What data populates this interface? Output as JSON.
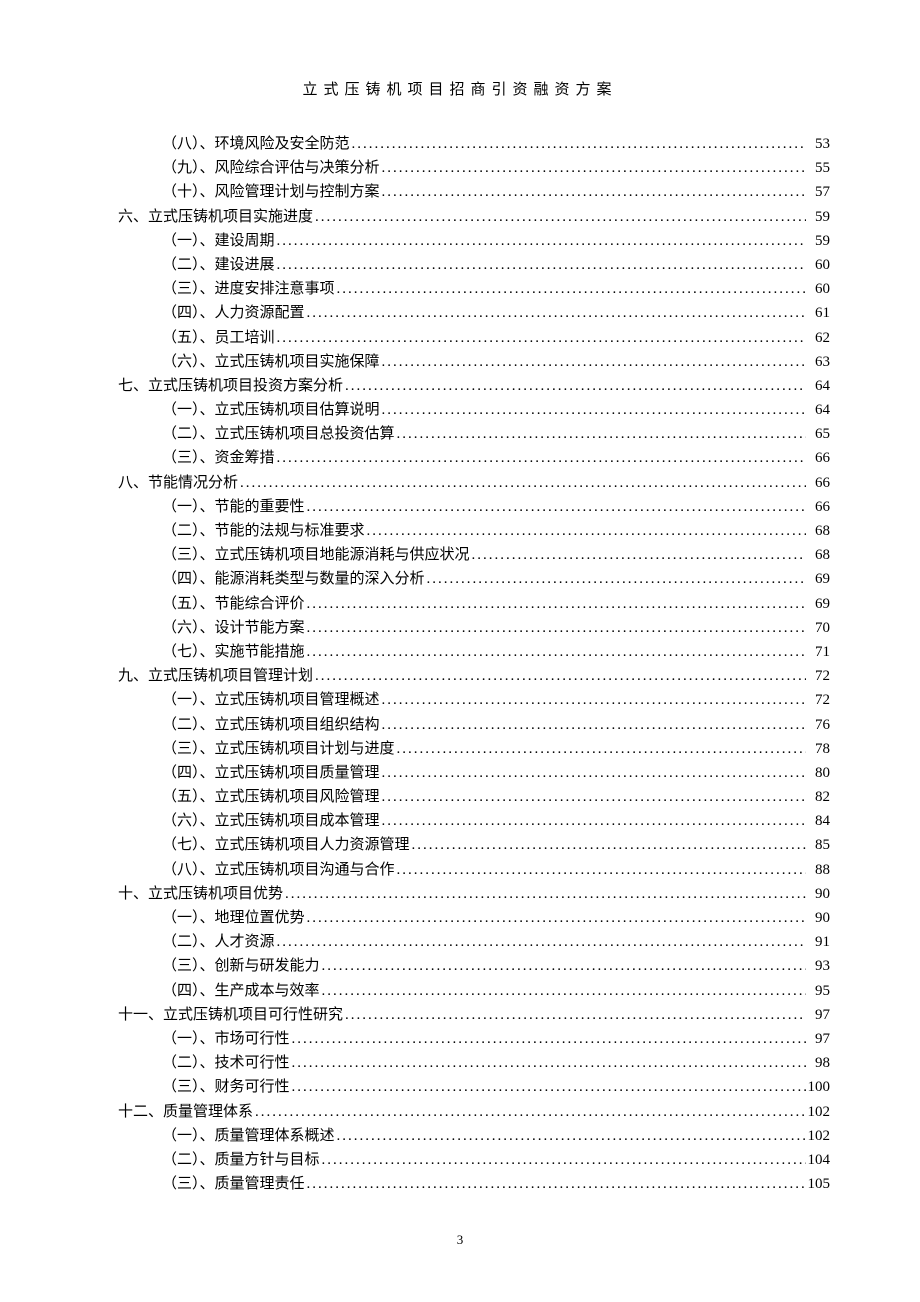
{
  "header_title": "立式压铸机项目招商引资融资方案",
  "page_number": "3",
  "text_color": "#000000",
  "background_color": "#ffffff",
  "font_family": "SimSun",
  "base_fontsize": 15,
  "header_fontsize": 15,
  "header_letter_spacing": 6,
  "toc_entries": [
    {
      "level": 2,
      "label": "（八）、环境风险及安全防范",
      "page": "53"
    },
    {
      "level": 2,
      "label": "（九）、风险综合评估与决策分析",
      "page": "55"
    },
    {
      "level": 2,
      "label": "（十）、风险管理计划与控制方案",
      "page": "57"
    },
    {
      "level": 1,
      "label": "六、立式压铸机项目实施进度",
      "page": "59"
    },
    {
      "level": 2,
      "label": "（一）、建设周期",
      "page": "59"
    },
    {
      "level": 2,
      "label": "（二）、建设进展",
      "page": "60"
    },
    {
      "level": 2,
      "label": "（三）、进度安排注意事项",
      "page": "60"
    },
    {
      "level": 2,
      "label": "（四）、人力资源配置",
      "page": "61"
    },
    {
      "level": 2,
      "label": "（五）、员工培训",
      "page": "62"
    },
    {
      "level": 2,
      "label": "（六）、立式压铸机项目实施保障",
      "page": "63"
    },
    {
      "level": 1,
      "label": "七、立式压铸机项目投资方案分析",
      "page": "64"
    },
    {
      "level": 2,
      "label": "（一）、立式压铸机项目估算说明",
      "page": "64"
    },
    {
      "level": 2,
      "label": "（二）、立式压铸机项目总投资估算",
      "page": "65"
    },
    {
      "level": 2,
      "label": "（三）、资金筹措",
      "page": "66"
    },
    {
      "level": 1,
      "label": "八、节能情况分析",
      "page": "66"
    },
    {
      "level": 2,
      "label": "（一）、节能的重要性",
      "page": "66"
    },
    {
      "level": 2,
      "label": "（二）、节能的法规与标准要求",
      "page": "68"
    },
    {
      "level": 2,
      "label": "（三）、立式压铸机项目地能源消耗与供应状况",
      "page": "68"
    },
    {
      "level": 2,
      "label": "（四）、能源消耗类型与数量的深入分析",
      "page": "69"
    },
    {
      "level": 2,
      "label": "（五）、节能综合评价",
      "page": "69"
    },
    {
      "level": 2,
      "label": "（六）、设计节能方案",
      "page": "70"
    },
    {
      "level": 2,
      "label": "（七）、实施节能措施",
      "page": "71"
    },
    {
      "level": 1,
      "label": "九、立式压铸机项目管理计划",
      "page": "72"
    },
    {
      "level": 2,
      "label": "（一）、立式压铸机项目管理概述",
      "page": "72"
    },
    {
      "level": 2,
      "label": "（二）、立式压铸机项目组织结构",
      "page": "76"
    },
    {
      "level": 2,
      "label": "（三）、立式压铸机项目计划与进度",
      "page": "78"
    },
    {
      "level": 2,
      "label": "（四）、立式压铸机项目质量管理",
      "page": "80"
    },
    {
      "level": 2,
      "label": "（五）、立式压铸机项目风险管理",
      "page": "82"
    },
    {
      "level": 2,
      "label": "（六）、立式压铸机项目成本管理",
      "page": "84"
    },
    {
      "level": 2,
      "label": "（七）、立式压铸机项目人力资源管理",
      "page": "85"
    },
    {
      "level": 2,
      "label": "（八）、立式压铸机项目沟通与合作",
      "page": "88"
    },
    {
      "level": 1,
      "label": "十、立式压铸机项目优势",
      "page": "90"
    },
    {
      "level": 2,
      "label": "（一）、地理位置优势",
      "page": "90"
    },
    {
      "level": 2,
      "label": "（二）、人才资源",
      "page": "91"
    },
    {
      "level": 2,
      "label": "（三）、创新与研发能力",
      "page": "93"
    },
    {
      "level": 2,
      "label": "（四）、生产成本与效率",
      "page": "95"
    },
    {
      "level": 1,
      "label": "十一、立式压铸机项目可行性研究",
      "page": "97"
    },
    {
      "level": 2,
      "label": "（一）、市场可行性",
      "page": "97"
    },
    {
      "level": 2,
      "label": "（二）、技术可行性",
      "page": "98"
    },
    {
      "level": 2,
      "label": "（三）、财务可行性",
      "page": "100"
    },
    {
      "level": 1,
      "label": "十二、质量管理体系",
      "page": "102"
    },
    {
      "level": 2,
      "label": "（一）、质量管理体系概述",
      "page": "102"
    },
    {
      "level": 2,
      "label": "（二）、质量方针与目标",
      "page": "104"
    },
    {
      "level": 2,
      "label": "（三）、质量管理责任",
      "page": "105"
    }
  ]
}
